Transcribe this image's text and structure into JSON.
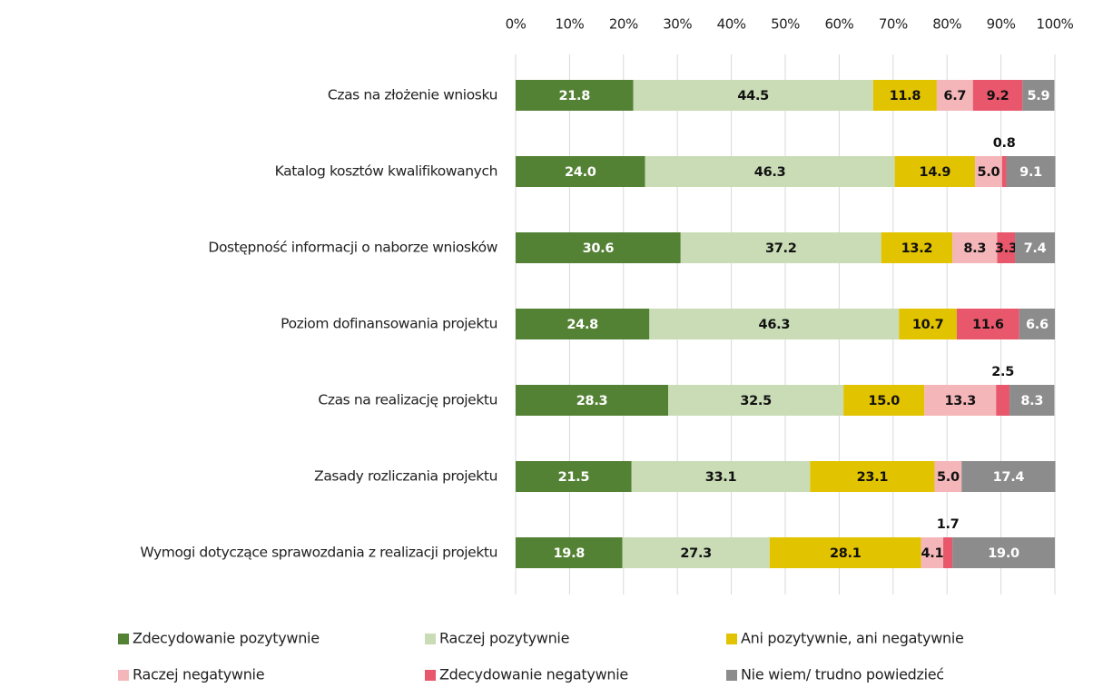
{
  "chart_data": {
    "type": "stacked_barh",
    "categories": [
      "Czas na złożenie wniosku",
      "Katalog kosztów kwalifikowanych",
      "Dostępność informacji o naborze wniosków",
      "Poziom dofinansowania projektu",
      "Czas na realizację projektu",
      "Zasady rozliczania projektu",
      "Wymogi dotyczące sprawozdania z realizacji projektu"
    ],
    "series": [
      {
        "name": "Zdecydowanie pozytywnie",
        "color": "#548235",
        "values": [
          21.8,
          24.0,
          30.6,
          24.8,
          28.3,
          21.5,
          19.8
        ],
        "value_labels": [
          "21.8",
          "24.0",
          "30.6",
          "24.8",
          "28.3",
          "21.5",
          "19.8"
        ]
      },
      {
        "name": "Raczej pozytywnie",
        "color": "#c9dcb6",
        "values": [
          44.5,
          46.3,
          37.2,
          46.3,
          32.5,
          33.1,
          27.3
        ],
        "value_labels": [
          "44.5",
          "46.3",
          "37.2",
          "46.3",
          "32.5",
          "33.1",
          "27.3"
        ]
      },
      {
        "name": "Ani pozytywnie, ani negatywnie",
        "color": "#e2c300",
        "values": [
          11.8,
          14.9,
          13.2,
          10.7,
          15.0,
          23.1,
          28.1
        ],
        "value_labels": [
          "11.8",
          "14.9",
          "13.2",
          "10.7",
          "15.0",
          "23.1",
          "28.1"
        ]
      },
      {
        "name": "Raczej negatywnie",
        "color": "#f4b6b9",
        "values": [
          6.7,
          5.0,
          8.3,
          null,
          13.3,
          5.0,
          4.1
        ],
        "value_labels": [
          "6.7",
          "5.0",
          "8.3",
          null,
          "13.3",
          "5.0",
          "4.1"
        ]
      },
      {
        "name": "Zdecydowanie negatywnie",
        "color": "#e8576b",
        "values": [
          9.2,
          0.8,
          3.3,
          11.6,
          2.5,
          null,
          1.7
        ],
        "value_labels": [
          "9.2",
          "0.8",
          "3.3",
          "11.6",
          "2.5",
          null,
          "1.7"
        ]
      },
      {
        "name": "Nie wiem/ trudno powiedzieć",
        "color": "#8c8c8c",
        "values": [
          5.9,
          9.1,
          7.4,
          6.6,
          8.3,
          17.4,
          19.0
        ],
        "value_labels": [
          "5.9",
          "9.1",
          "7.4",
          "6.6",
          "8.3",
          "17.4",
          "19.0"
        ]
      }
    ],
    "xlim": [
      0,
      100
    ],
    "xticks": [
      {
        "value": 0,
        "label": "0%"
      },
      {
        "value": 10,
        "label": "10%"
      },
      {
        "value": 20,
        "label": "20%"
      },
      {
        "value": 30,
        "label": "30%"
      },
      {
        "value": 40,
        "label": "40%"
      },
      {
        "value": 50,
        "label": "50%"
      },
      {
        "value": 60,
        "label": "60%"
      },
      {
        "value": 70,
        "label": "70%"
      },
      {
        "value": 80,
        "label": "80%"
      },
      {
        "value": 90,
        "label": "90%"
      },
      {
        "value": 100,
        "label": "100%"
      }
    ],
    "grid": true,
    "legend": "bottom"
  }
}
